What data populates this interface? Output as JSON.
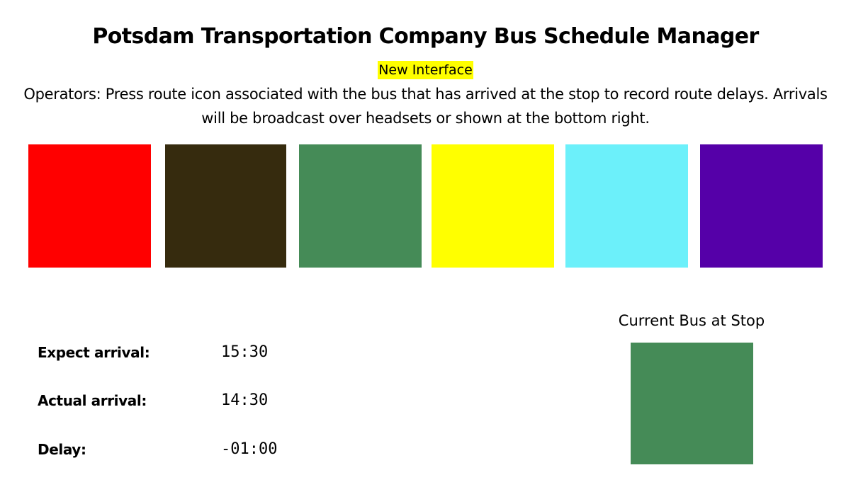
{
  "header": {
    "title": "Potsdam Transportation Company Bus Schedule Manager",
    "badge": "New Interface",
    "instructions": "Operators: Press route icon associated with the bus that has arrived at the stop to record route delays. Arrivals will be broadcast over headsets or shown at the bottom right."
  },
  "routes": [
    {
      "color": "#ff0000"
    },
    {
      "color": "#362b0e"
    },
    {
      "color": "#458b57"
    },
    {
      "color": "#ffff00"
    },
    {
      "color": "#6cf0fa"
    },
    {
      "color": "#5500a8"
    }
  ],
  "arrival": {
    "expected_label": "Expect arrival:",
    "expected_value": "15:30",
    "actual_label": "Actual arrival:",
    "actual_value": "14:30",
    "delay_label": "Delay:",
    "delay_value": "-01:00"
  },
  "current_bus": {
    "label": "Current Bus at Stop",
    "color": "#458b57"
  }
}
